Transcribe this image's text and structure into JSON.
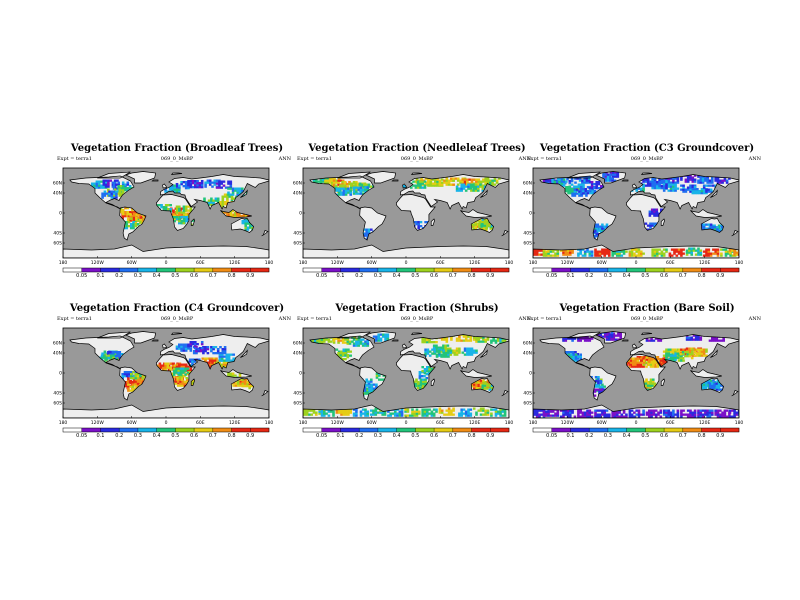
{
  "chart_data": [
    {
      "type": "heatmap",
      "title": "Vegetation Fraction (Broadleaf Trees)",
      "experiment": "Expt = terra1",
      "case": "069_0_MsBP",
      "season": "ANN",
      "xticks": [
        "180",
        "120W",
        "60W",
        "0",
        "60E",
        "120E",
        "180"
      ],
      "yticks": [
        "60N",
        "40N",
        "0",
        "40S",
        "60S"
      ],
      "colorbar": {
        "levels": [
          "0.05",
          "0.1",
          "0.2",
          "0.3",
          "0.4",
          "0.5",
          "0.6",
          "0.7",
          "0.8",
          "0.9"
        ]
      }
    },
    {
      "type": "heatmap",
      "title": "Vegetation Fraction (Needleleaf Trees)",
      "experiment": "Expt = terra1",
      "case": "069_0_MsBP",
      "season": "ANN",
      "xticks": [
        "180",
        "120W",
        "60W",
        "0",
        "60E",
        "120E",
        "180"
      ],
      "yticks": [
        "60N",
        "40N",
        "0",
        "40S",
        "60S"
      ],
      "colorbar": {
        "levels": [
          "0.05",
          "0.1",
          "0.2",
          "0.3",
          "0.4",
          "0.5",
          "0.6",
          "0.7",
          "0.8",
          "0.9"
        ]
      }
    },
    {
      "type": "heatmap",
      "title": "Vegetation Fraction (C3 Groundcover)",
      "experiment": "Expt = terra1",
      "case": "069_0_MsBP",
      "season": "ANN",
      "xticks": [
        "180",
        "120W",
        "60W",
        "0",
        "60E",
        "120E",
        "180"
      ],
      "yticks": [
        "60N",
        "40N",
        "0",
        "40S",
        "60S"
      ],
      "colorbar": {
        "levels": [
          "0.05",
          "0.1",
          "0.2",
          "0.3",
          "0.4",
          "0.5",
          "0.6",
          "0.7",
          "0.8",
          "0.9"
        ]
      }
    },
    {
      "type": "heatmap",
      "title": "Vegetation Fraction (C4 Groundcover)",
      "experiment": "Expt = terra1",
      "case": "069_0_MsBP",
      "season": "ANN",
      "xticks": [
        "180",
        "120W",
        "60W",
        "0",
        "60E",
        "120E",
        "180"
      ],
      "yticks": [
        "60N",
        "40N",
        "0",
        "40S",
        "60S"
      ],
      "colorbar": {
        "levels": [
          "0.05",
          "0.1",
          "0.2",
          "0.3",
          "0.4",
          "0.5",
          "0.6",
          "0.7",
          "0.8",
          "0.9"
        ]
      }
    },
    {
      "type": "heatmap",
      "title": "Vegetation Fraction (Shrubs)",
      "experiment": "Expt = terra1",
      "case": "069_0_MsBP",
      "season": "ANN",
      "xticks": [
        "180",
        "120W",
        "60W",
        "0",
        "60E",
        "120E",
        "180"
      ],
      "yticks": [
        "60N",
        "40N",
        "0",
        "40S",
        "60S"
      ],
      "colorbar": {
        "levels": [
          "0.05",
          "0.1",
          "0.2",
          "0.3",
          "0.4",
          "0.5",
          "0.6",
          "0.7",
          "0.8",
          "0.9"
        ]
      }
    },
    {
      "type": "heatmap",
      "title": "Vegetation Fraction (Bare Soil)",
      "experiment": "Expt = terra1",
      "case": "069_0_MsBP",
      "season": "ANN",
      "xticks": [
        "180",
        "120W",
        "60W",
        "0",
        "60E",
        "120E",
        "180"
      ],
      "yticks": [
        "60N",
        "40N",
        "0",
        "40S",
        "60S"
      ],
      "colorbar": {
        "levels": [
          "0.05",
          "0.1",
          "0.2",
          "0.3",
          "0.4",
          "0.5",
          "0.6",
          "0.7",
          "0.8",
          "0.9"
        ]
      }
    }
  ],
  "colors": {
    "ocean": "#999999",
    "land_empty": "#eeeeee",
    "coast": "#000000",
    "scale": [
      "#ffffff",
      "#7a10c8",
      "#2a2ae0",
      "#1f6ef0",
      "#18b4e8",
      "#22c47a",
      "#9ed21e",
      "#e6cc14",
      "#f08c14",
      "#e62814"
    ]
  }
}
